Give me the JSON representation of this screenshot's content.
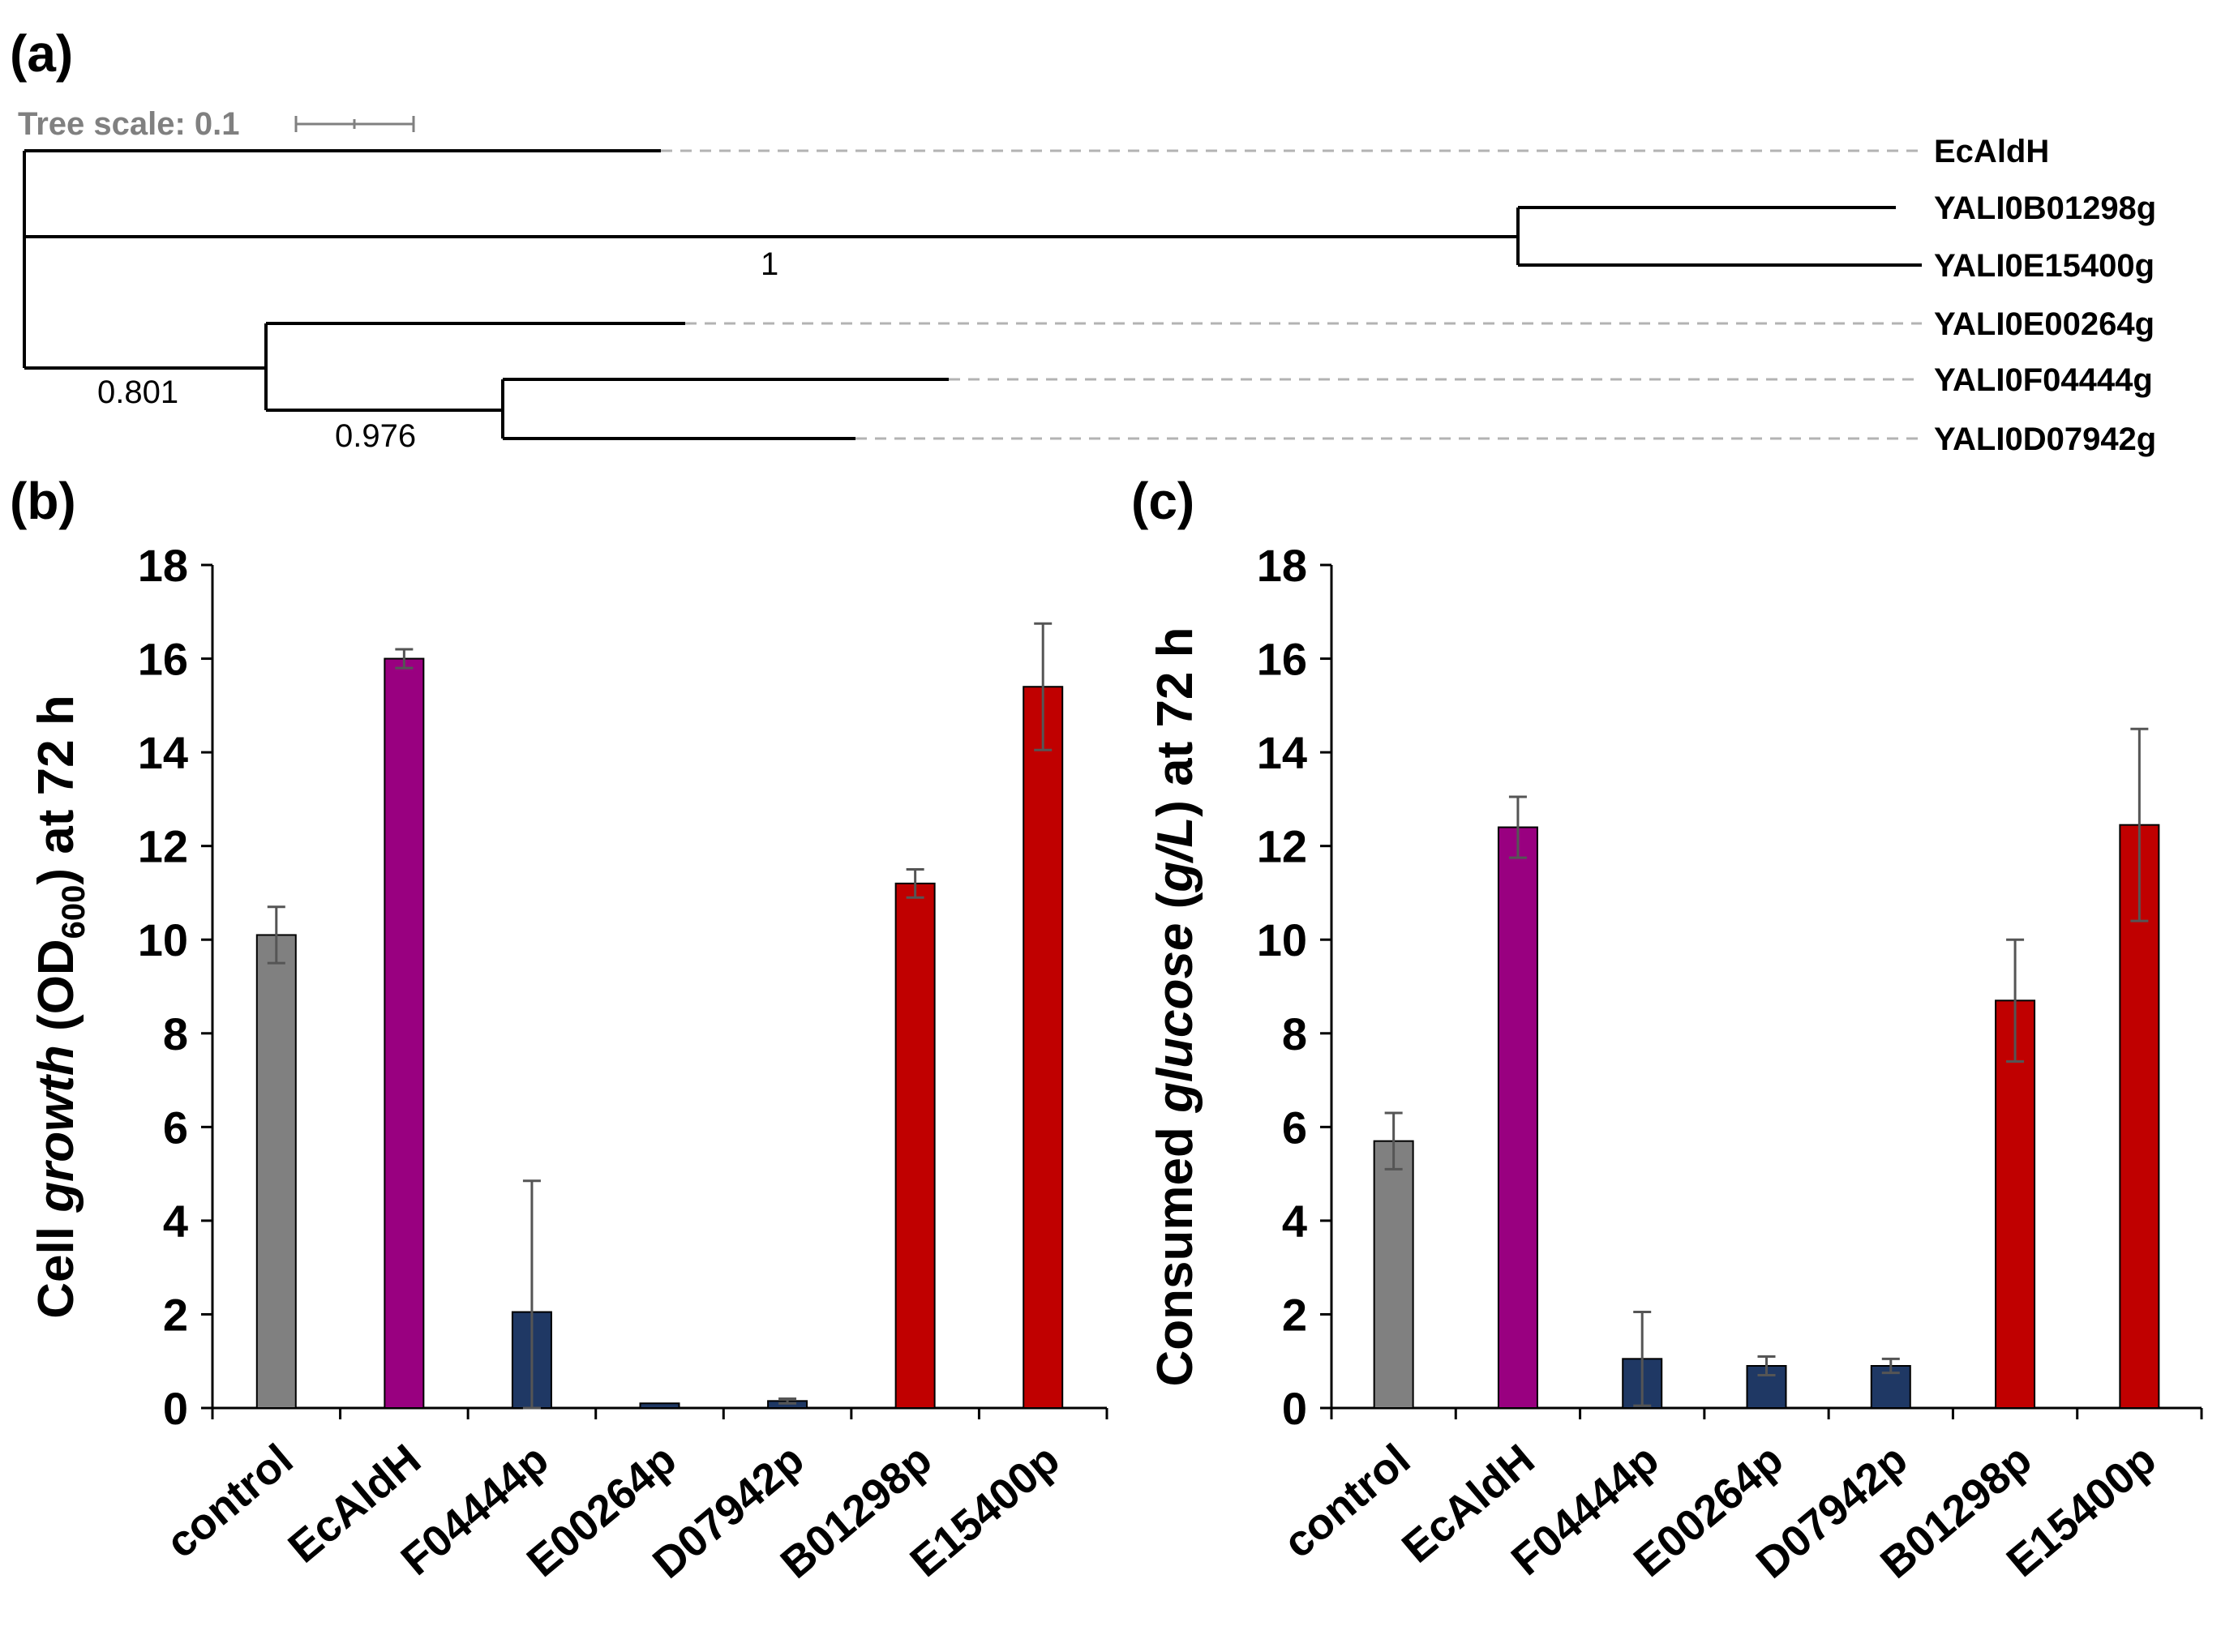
{
  "panels": {
    "a": "(a)",
    "b": "(b)",
    "c": "(c)"
  },
  "tree": {
    "scale_label": "Tree scale: 0.1",
    "leaves": [
      "EcAldH",
      "YALI0B01298g",
      "YALI0E15400g",
      "YALI0E00264g",
      "YALI0F04444g",
      "YALI0D07942g"
    ],
    "supports": [
      "1",
      "0.801",
      "0.976"
    ]
  },
  "chart_data": [
    {
      "type": "bar",
      "panel": "(b)",
      "categories": [
        "control",
        "EcAldH",
        "F04444p",
        "E00264p",
        "D07942p",
        "B01298p",
        "E15400p"
      ],
      "values": [
        10.1,
        16.0,
        2.05,
        0.1,
        0.15,
        11.2,
        15.4
      ],
      "errors": [
        0.6,
        0.2,
        2.8,
        0.0,
        0.05,
        0.3,
        1.35
      ],
      "colors": [
        "#808080",
        "#990080",
        "#1f3864",
        "#1f3864",
        "#1f3864",
        "#c00000",
        "#c00000"
      ],
      "ylabel_parts": [
        "Cell ",
        "growth",
        " (OD",
        "600",
        ") at 72 h"
      ],
      "ylim": [
        0,
        18
      ],
      "yticks": [
        "0",
        "2",
        "4",
        "6",
        "8",
        "10",
        "12",
        "14",
        "16",
        "18"
      ]
    },
    {
      "type": "bar",
      "panel": "(c)",
      "categories": [
        "control",
        "EcAldH",
        "F04444p",
        "E00264p",
        "D07942p",
        "B01298p",
        "E15400p"
      ],
      "values": [
        5.7,
        12.4,
        1.05,
        0.9,
        0.9,
        8.7,
        12.45
      ],
      "errors": [
        0.6,
        0.65,
        1.0,
        0.2,
        0.15,
        1.3,
        2.05
      ],
      "colors": [
        "#808080",
        "#990080",
        "#1f3864",
        "#1f3864",
        "#1f3864",
        "#c00000",
        "#c00000"
      ],
      "ylabel_parts": [
        "Consumed ",
        "glucose",
        " (",
        "g/L",
        ") at 72 h"
      ],
      "ylim": [
        0,
        18
      ],
      "yticks": [
        "0",
        "2",
        "4",
        "6",
        "8",
        "10",
        "12",
        "14",
        "16",
        "18"
      ]
    }
  ]
}
